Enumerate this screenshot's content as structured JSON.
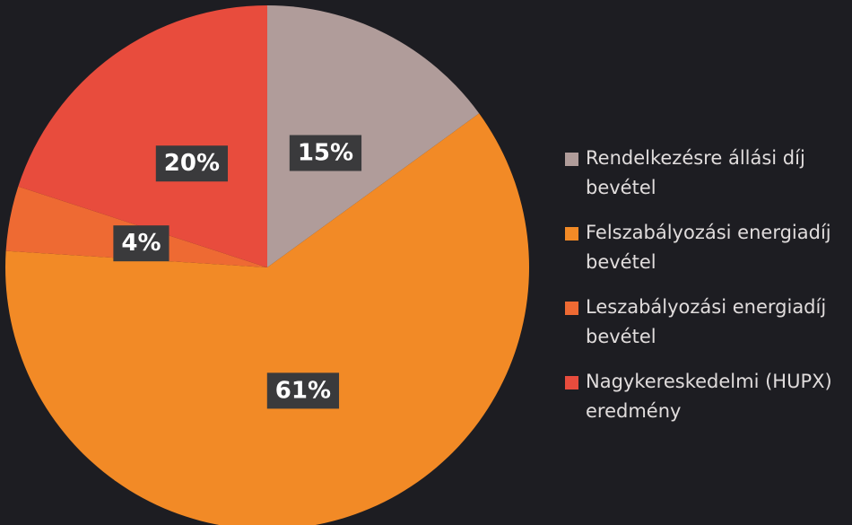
{
  "chart_data": {
    "type": "pie",
    "categories": [
      "Rendelkezésre állási díj bevétel",
      "Felszabályozási energiadíj bevétel",
      "Leszabályozási energiadíj bevétel",
      "Nagykereskedelmi (HUPX) eredmény"
    ],
    "values": [
      15,
      61,
      4,
      20
    ],
    "value_labels": [
      "15%",
      "61%",
      "4%",
      "20%"
    ],
    "colors": [
      "#b09c9a",
      "#f28a26",
      "#ee6a33",
      "#e84c3d"
    ]
  }
}
